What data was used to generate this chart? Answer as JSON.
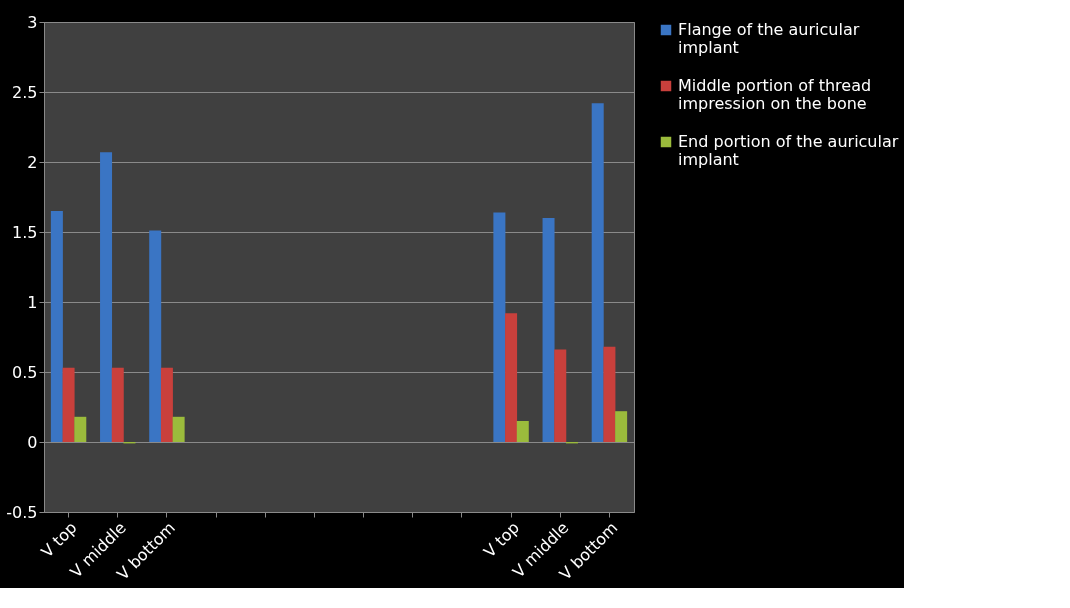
{
  "chart_data": {
    "type": "bar",
    "categories": [
      "V top",
      "V middle",
      "V bottom",
      null,
      null,
      null,
      null,
      null,
      null,
      "V top",
      "V middle",
      "V bottom"
    ],
    "series": [
      {
        "name": "Flange of the auricular implant",
        "color": "#3a75c4",
        "values": [
          1.65,
          2.07,
          1.51,
          null,
          null,
          null,
          null,
          null,
          null,
          1.64,
          1.6,
          2.42
        ]
      },
      {
        "name": "Middle portion of thread impression on the bone",
        "color": "#c9403c",
        "values": [
          0.53,
          0.53,
          0.53,
          null,
          null,
          null,
          null,
          null,
          null,
          0.92,
          0.66,
          0.68
        ]
      },
      {
        "name": "End portion of the auricular implant",
        "color": "#9bbb3c",
        "values": [
          0.18,
          -0.01,
          0.18,
          null,
          null,
          null,
          null,
          null,
          null,
          0.15,
          -0.01,
          0.22
        ]
      }
    ],
    "ylim": [
      -0.5,
      3
    ],
    "yticks": [
      -0.5,
      0,
      0.5,
      1,
      1.5,
      2,
      2.5,
      3
    ],
    "grid": "y",
    "legend": "right"
  }
}
